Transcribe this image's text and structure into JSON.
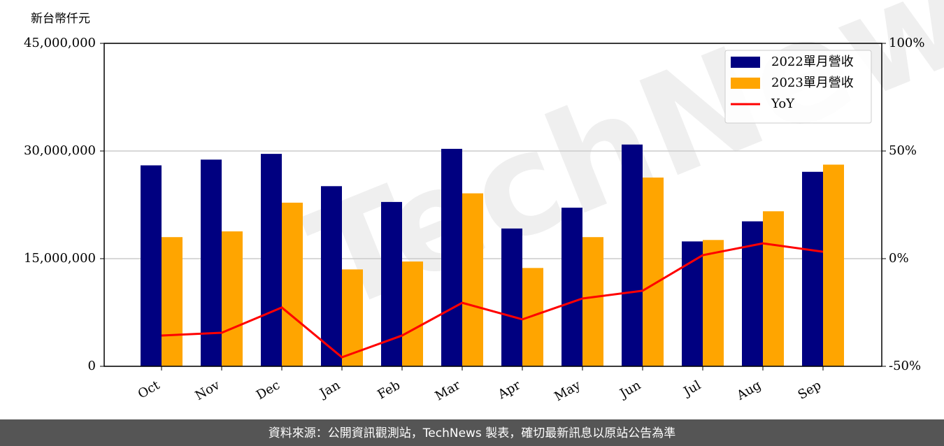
{
  "chart_data": {
    "type": "bar",
    "y_label": "新台幣仟元",
    "watermark": "TechNews",
    "footer": "資料來源：公開資訊觀測站，TechNews 製表，確切最新訊息以原站公告為準",
    "categories": [
      "Oct",
      "Nov",
      "Dec",
      "Jan",
      "Feb",
      "Mar",
      "Apr",
      "May",
      "Jun",
      "Jul",
      "Aug",
      "Sep"
    ],
    "series": [
      {
        "name": "2022單月營收",
        "color": "#000080",
        "values": [
          28000000,
          28800000,
          29600000,
          25100000,
          22900000,
          30300000,
          19200000,
          22100000,
          30900000,
          17400000,
          20200000,
          27100000
        ]
      },
      {
        "name": "2023單月營收",
        "color": "#ffa500",
        "values": [
          18000000,
          18800000,
          22800000,
          13500000,
          14600000,
          24100000,
          13700000,
          18000000,
          26300000,
          17600000,
          21600000,
          28100000
        ]
      },
      {
        "name": "YoY",
        "color": "#ff0000",
        "type": "line",
        "axis": "y2",
        "values": [
          -35.7,
          -34.4,
          -22.7,
          -45.8,
          -35.7,
          -20.5,
          -28.2,
          -18.5,
          -14.9,
          1.6,
          7.1,
          3.2
        ]
      }
    ],
    "ylim": [
      0,
      45000000
    ],
    "yticks": [
      {
        "value": 0,
        "label": "0"
      },
      {
        "value": 15000000,
        "label": "15,000,000"
      },
      {
        "value": 30000000,
        "label": "30,000,000"
      },
      {
        "value": 45000000,
        "label": "45,000,000"
      }
    ],
    "y2lim": [
      -50,
      100
    ],
    "y2ticks": [
      {
        "value": -50,
        "label": "-50%"
      },
      {
        "value": 0,
        "label": "0%"
      },
      {
        "value": 50,
        "label": "50%"
      },
      {
        "value": 100,
        "label": "100%"
      }
    ],
    "grid": true,
    "legend": "upper right"
  }
}
